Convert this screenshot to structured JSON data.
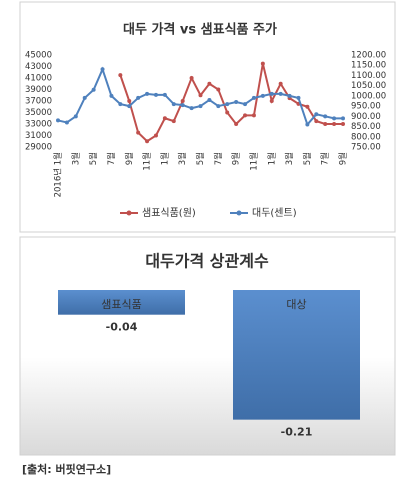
{
  "chart_data": [
    {
      "type": "line",
      "title": "대두 가격 vs 샘표식품 주가",
      "categories": [
        "2016년 1월",
        null,
        "3월",
        null,
        "5월",
        null,
        "7월",
        null,
        "9월",
        null,
        "11월",
        null,
        "1월",
        null,
        "3월",
        null,
        "5월",
        null,
        "7월",
        null,
        "9월",
        null,
        "11월",
        null,
        "1월",
        null,
        "3월",
        null,
        "5월",
        null,
        "7월",
        null,
        "9월"
      ],
      "series": [
        {
          "name": "샘표식품(원)",
          "color": "#c0504d",
          "axis": "y",
          "values": [
            null,
            null,
            null,
            null,
            null,
            null,
            null,
            41500,
            37000,
            31500,
            30000,
            31000,
            34000,
            33500,
            37000,
            41000,
            38000,
            40000,
            39000,
            35000,
            33000,
            34500,
            34500,
            43500,
            37000,
            40000,
            37500,
            36500,
            36000,
            33500,
            33000,
            33000,
            33000
          ]
        },
        {
          "name": "대두(센트)",
          "color": "#4f81bd",
          "axis": "y2",
          "values": [
            880,
            870,
            900,
            990,
            1030,
            1130,
            1000,
            960,
            950,
            990,
            1010,
            1005,
            1005,
            960,
            955,
            940,
            950,
            980,
            950,
            960,
            970,
            960,
            990,
            1000,
            1010,
            1010,
            1000,
            990,
            860,
            910,
            900,
            890,
            890
          ]
        }
      ],
      "ylim": [
        29000,
        45000
      ],
      "yticks": [
        29000,
        31000,
        33000,
        35000,
        37000,
        39000,
        41000,
        43000,
        45000
      ],
      "y2lim": [
        750,
        1200
      ],
      "y2ticks": [
        {
          "value": 750,
          "label": "750.00"
        },
        {
          "value": 800,
          "label": "800.00"
        },
        {
          "value": 850,
          "label": "850.00"
        },
        {
          "value": 900,
          "label": "900.00"
        },
        {
          "value": 950,
          "label": "950.00"
        },
        {
          "value": 1000,
          "label": "1000.00"
        },
        {
          "value": 1050,
          "label": "1050.00"
        },
        {
          "value": 1100,
          "label": "1100.00"
        },
        {
          "value": 1150,
          "label": "1150.00"
        },
        {
          "value": 1200,
          "label": "1200.00"
        }
      ],
      "legend": "bottom"
    },
    {
      "type": "bar",
      "title": "대두가격 상관계수",
      "categories": [
        "샘표식품",
        "대상"
      ],
      "values": [
        -0.04,
        -0.21
      ],
      "color": "#4f81bd",
      "ylim": [
        -0.23,
        0
      ]
    }
  ],
  "source": "[출처: 버핏연구소]"
}
